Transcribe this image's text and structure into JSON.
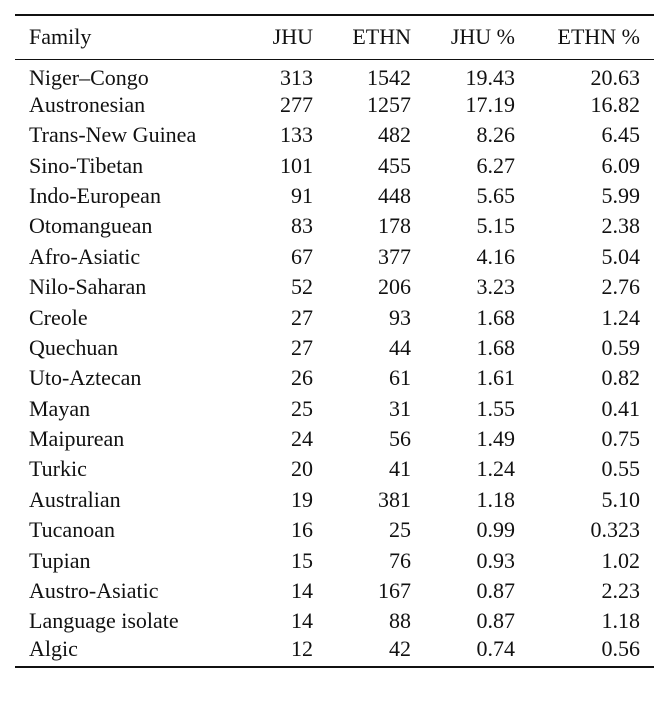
{
  "table": {
    "headers": [
      "Family",
      "JHU",
      "ETHN",
      "JHU %",
      "ETHN %"
    ],
    "rows": [
      [
        "Niger–Congo",
        "313",
        "1542",
        "19.43",
        "20.63"
      ],
      [
        "Austronesian",
        "277",
        "1257",
        "17.19",
        "16.82"
      ],
      [
        "Trans-New Guinea",
        "133",
        "482",
        "8.26",
        "6.45"
      ],
      [
        "Sino-Tibetan",
        "101",
        "455",
        "6.27",
        "6.09"
      ],
      [
        "Indo-European",
        "91",
        "448",
        "5.65",
        "5.99"
      ],
      [
        "Otomanguean",
        "83",
        "178",
        "5.15",
        "2.38"
      ],
      [
        "Afro-Asiatic",
        "67",
        "377",
        "4.16",
        "5.04"
      ],
      [
        "Nilo-Saharan",
        "52",
        "206",
        "3.23",
        "2.76"
      ],
      [
        "Creole",
        "27",
        "93",
        "1.68",
        "1.24"
      ],
      [
        "Quechuan",
        "27",
        "44",
        "1.68",
        "0.59"
      ],
      [
        "Uto-Aztecan",
        "26",
        "61",
        "1.61",
        "0.82"
      ],
      [
        "Mayan",
        "25",
        "31",
        "1.55",
        "0.41"
      ],
      [
        "Maipurean",
        "24",
        "56",
        "1.49",
        "0.75"
      ],
      [
        "Turkic",
        "20",
        "41",
        "1.24",
        "0.55"
      ],
      [
        "Australian",
        "19",
        "381",
        "1.18",
        "5.10"
      ],
      [
        "Tucanoan",
        "16",
        "25",
        "0.99",
        "0.323"
      ],
      [
        "Tupian",
        "15",
        "76",
        "0.93",
        "1.02"
      ],
      [
        "Austro-Asiatic",
        "14",
        "167",
        "0.87",
        "2.23"
      ],
      [
        "Language isolate",
        "14",
        "88",
        "0.87",
        "1.18"
      ],
      [
        "Algic",
        "12",
        "42",
        "0.74",
        "0.56"
      ]
    ]
  }
}
